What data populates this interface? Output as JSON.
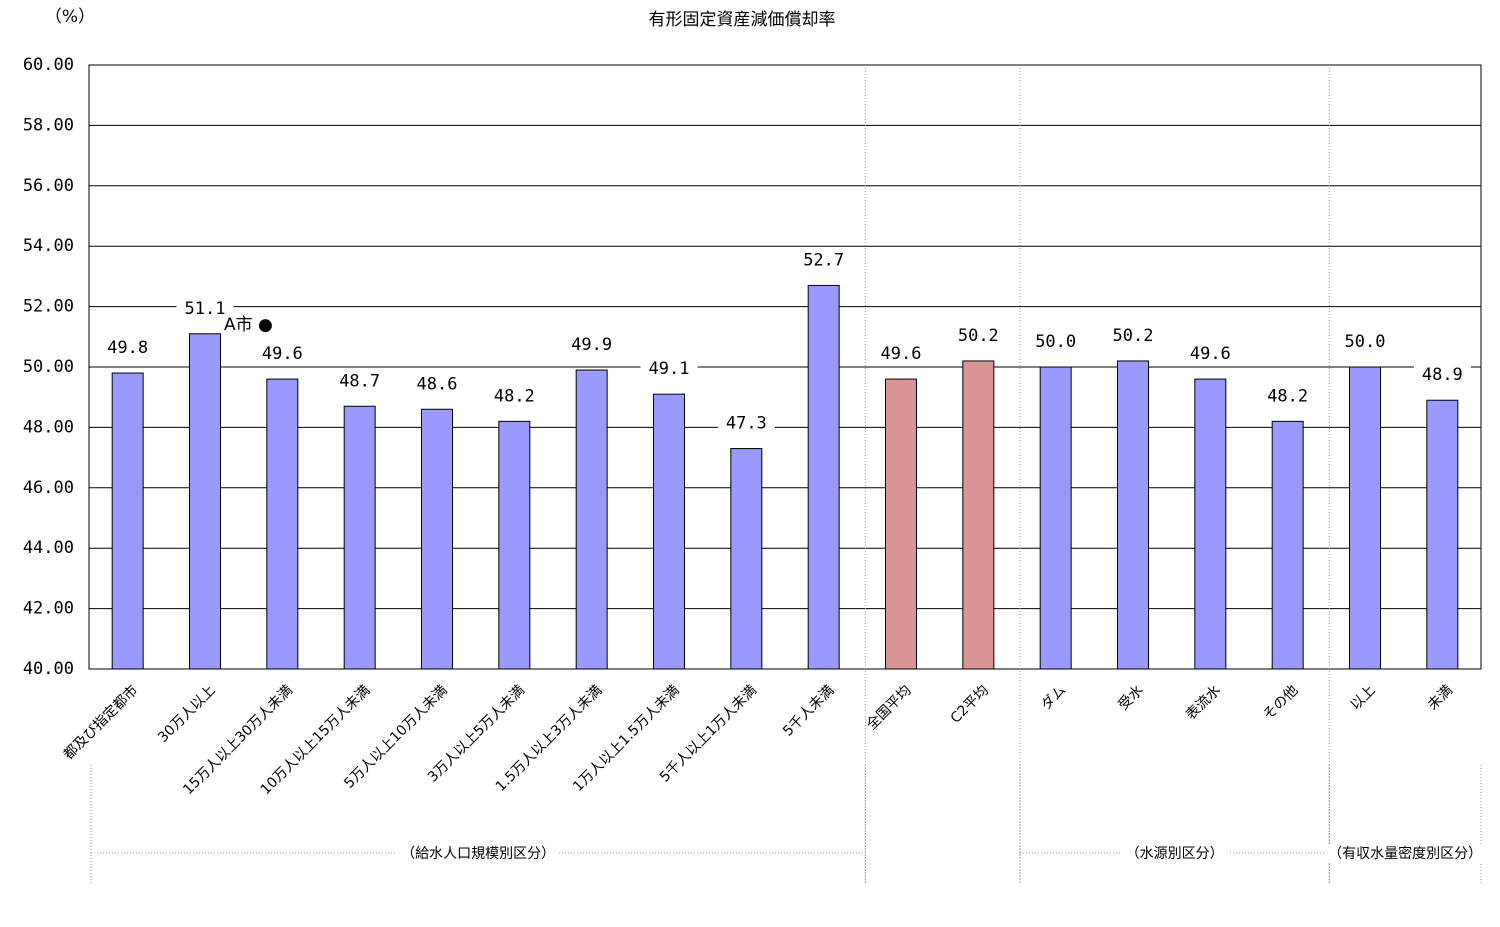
{
  "chart_data": {
    "type": "bar",
    "title": "有形固定資産減価償却率",
    "y_unit": "（%）",
    "annotation": "A市 ●",
    "categories": [
      "都及び指定都市",
      "30万人以上",
      "15万人以上30万人未満",
      "10万人以上15万人未満",
      "5万人以上10万人未満",
      "3万人以上5万人未満",
      "1.5万人以上3万人未満",
      "1万人以上1.5万人未満",
      "5千人以上1万人未満",
      "5千人未満",
      "全国平均",
      "C2平均",
      "ダム",
      "受水",
      "表流水",
      "その他",
      "以上",
      "未満"
    ],
    "values": [
      49.8,
      51.1,
      49.6,
      48.7,
      48.6,
      48.2,
      49.9,
      49.1,
      47.3,
      52.7,
      49.6,
      50.2,
      50.0,
      50.2,
      49.6,
      48.2,
      50.0,
      48.9
    ],
    "value_labels": [
      "49.8",
      "51.1",
      "49.6",
      "48.7",
      "48.6",
      "48.2",
      "49.9",
      "49.1",
      "47.3",
      "52.7",
      "49.6",
      "50.2",
      "50.0",
      "50.2",
      "49.6",
      "48.2",
      "50.0",
      "48.9"
    ],
    "colors": [
      "#9999ff",
      "#9999ff",
      "#9999ff",
      "#9999ff",
      "#9999ff",
      "#9999ff",
      "#9999ff",
      "#9999ff",
      "#9999ff",
      "#9999ff",
      "#d99594",
      "#d99594",
      "#9999ff",
      "#9999ff",
      "#9999ff",
      "#9999ff",
      "#9999ff",
      "#9999ff"
    ],
    "groups": [
      "（給水人口規模別区分）",
      "（水源別区分）",
      "（有収水量密度別区分）"
    ],
    "ylim": [
      40,
      60
    ],
    "yticks": [
      {
        "value": 40,
        "label": "40.00"
      },
      {
        "value": 42,
        "label": "42.00"
      },
      {
        "value": 44,
        "label": "44.00"
      },
      {
        "value": 46,
        "label": "46.00"
      },
      {
        "value": 48,
        "label": "48.00"
      },
      {
        "value": 50,
        "label": "50.00"
      },
      {
        "value": 52,
        "label": "52.00"
      },
      {
        "value": 54,
        "label": "54.00"
      },
      {
        "value": 56,
        "label": "56.00"
      },
      {
        "value": 58,
        "label": "58.00"
      },
      {
        "value": 60,
        "label": "60.00"
      }
    ],
    "grid": true
  }
}
